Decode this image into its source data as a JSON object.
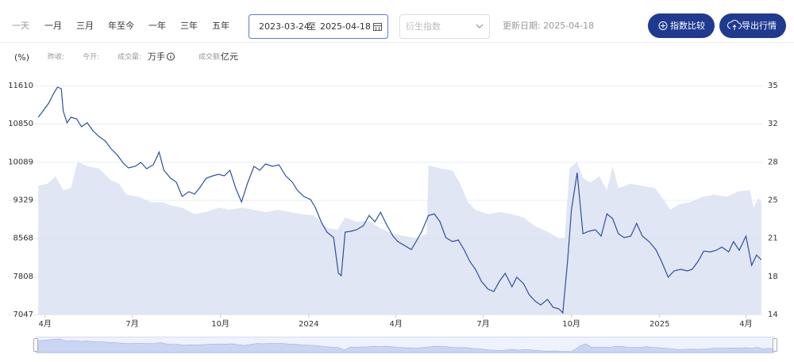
{
  "toolbar": {
    "periods": [
      "一天",
      "一月",
      "三月",
      "年至今",
      "一年",
      "三年",
      "五年"
    ],
    "date_start": "2023-03-24",
    "date_sep": "至",
    "date_end": "2025-04-18",
    "derived_placeholder": "衍生指数",
    "update_label": "更新日期: 2025-04-18",
    "buttons": [
      "指数比较",
      "导出行情"
    ]
  },
  "info_bar": {
    "unit": "(%)",
    "prev_close": "昨收:",
    "open": "今开:",
    "volume": "成交量:",
    "volume_unit": "万手",
    "turnover": "成交额:",
    "turnover_unit": "亿元"
  },
  "chart_data": {
    "type": "line",
    "grid": true,
    "xlim": [
      0,
      756
    ],
    "xticks": [
      {
        "value": 8,
        "label": "4月"
      },
      {
        "value": 99,
        "label": "7月"
      },
      {
        "value": 191,
        "label": "10月"
      },
      {
        "value": 283,
        "label": "2024"
      },
      {
        "value": 374,
        "label": "4月"
      },
      {
        "value": 465,
        "label": "7月"
      },
      {
        "value": 557,
        "label": "10月"
      },
      {
        "value": 649,
        "label": "2025"
      },
      {
        "value": 739,
        "label": "4月"
      }
    ],
    "ylim": [
      7047,
      11610
    ],
    "yticks": [
      7047,
      {
        "value": 7807.5,
        "label": "7808"
      },
      8568,
      {
        "value": 9328.5,
        "label": "9329"
      },
      10089,
      {
        "value": 10849.5,
        "label": "10850"
      },
      11610
    ],
    "y2lim": [
      14,
      35
    ],
    "y2ticks": [
      14,
      {
        "value": 17.5,
        "label": "18"
      },
      21,
      {
        "value": 24.5,
        "label": "25"
      },
      28,
      {
        "value": 31.5,
        "label": "32"
      },
      35
    ],
    "series": [
      {
        "color": "#d6ddef",
        "axis": "y2",
        "area": true,
        "x": [
          1,
          11,
          19,
          27,
          35,
          42,
          52,
          64,
          77,
          85,
          93,
          106,
          118,
          131,
          139,
          151,
          164,
          176,
          189,
          201,
          213,
          226,
          238,
          251,
          263,
          275,
          288,
          296,
          304,
          313,
          321,
          333,
          346,
          358,
          371,
          383,
          395,
          406,
          408,
          420,
          433,
          441,
          449,
          457,
          470,
          482,
          495,
          507,
          519,
          532,
          544,
          550,
          555,
          563,
          569,
          577,
          586,
          594,
          600,
          606,
          619,
          631,
          644,
          652,
          660,
          669,
          681,
          694,
          706,
          719,
          731,
          743,
          747,
          752,
          755
        ],
        "values": [
          25.8,
          26.0,
          26.7,
          25.4,
          25.6,
          28.0,
          27.6,
          27.4,
          26.3,
          26.0,
          25.0,
          24.8,
          24.3,
          24.3,
          24.0,
          23.8,
          23.2,
          23.4,
          23.8,
          23.6,
          23.8,
          23.6,
          23.4,
          23.6,
          23.4,
          23.2,
          23.1,
          22.4,
          21.9,
          21.8,
          22.9,
          22.5,
          22.6,
          21.9,
          21.4,
          21.2,
          21.0,
          21.4,
          27.7,
          27.4,
          27.2,
          26.0,
          24.3,
          23.6,
          23.2,
          23.4,
          23.2,
          22.9,
          22.1,
          21.6,
          21.0,
          21.0,
          27.4,
          28.0,
          26.5,
          26.1,
          26.7,
          25.4,
          27.6,
          25.6,
          26.0,
          25.8,
          25.6,
          24.7,
          23.6,
          24.1,
          24.3,
          24.8,
          25.0,
          24.8,
          25.3,
          25.4,
          23.8,
          24.7,
          24.3
        ]
      },
      {
        "color": "#2d4f9e",
        "axis": "y",
        "x": [
          1,
          6,
          12,
          17,
          21,
          25,
          27,
          31,
          35,
          41,
          46,
          52,
          58,
          64,
          71,
          77,
          83,
          89,
          95,
          102,
          108,
          114,
          121,
          127,
          132,
          139,
          145,
          151,
          158,
          164,
          170,
          176,
          183,
          189,
          195,
          201,
          207,
          213,
          219,
          226,
          232,
          238,
          245,
          252,
          259,
          266,
          271,
          278,
          285,
          290,
          296,
          302,
          309,
          314,
          317,
          321,
          327,
          333,
          340,
          346,
          352,
          358,
          364,
          371,
          376,
          383,
          390,
          395,
          401,
          408,
          414,
          420,
          426,
          433,
          439,
          445,
          451,
          457,
          463,
          470,
          476,
          482,
          488,
          495,
          500,
          507,
          513,
          519,
          525,
          532,
          538,
          544,
          548,
          553,
          557,
          563,
          569,
          575,
          582,
          588,
          594,
          600,
          606,
          612,
          619,
          625,
          631,
          638,
          645,
          651,
          658,
          664,
          671,
          678,
          683,
          689,
          695,
          702,
          708,
          714,
          721,
          726,
          732,
          739,
          745,
          750,
          755
        ],
        "values": [
          10979,
          11105,
          11263,
          11452,
          11579,
          11547,
          11105,
          10868,
          10979,
          10947,
          10789,
          10868,
          10710,
          10600,
          10505,
          10347,
          10237,
          10079,
          9968,
          10000,
          10079,
          9952,
          10031,
          10284,
          9921,
          9763,
          9684,
          9400,
          9494,
          9447,
          9589,
          9763,
          9810,
          9842,
          9810,
          9921,
          9558,
          9289,
          9652,
          10000,
          9921,
          10047,
          10000,
          10031,
          9810,
          9684,
          9526,
          9400,
          9337,
          9179,
          8894,
          8689,
          8579,
          7868,
          7821,
          8689,
          8705,
          8737,
          8815,
          9021,
          8894,
          9084,
          8847,
          8610,
          8500,
          8421,
          8342,
          8500,
          8705,
          9021,
          9052,
          8894,
          8579,
          8500,
          8531,
          8342,
          8105,
          7947,
          7710,
          7552,
          7505,
          7710,
          7868,
          7600,
          7789,
          7663,
          7442,
          7315,
          7236,
          7347,
          7189,
          7158,
          7079,
          8105,
          9131,
          9873,
          8658,
          8705,
          8737,
          8610,
          9052,
          8958,
          8658,
          8579,
          8610,
          8863,
          8610,
          8500,
          8342,
          8105,
          7789,
          7915,
          7947,
          7915,
          7947,
          8105,
          8310,
          8294,
          8326,
          8389,
          8294,
          8500,
          8326,
          8610,
          8026,
          8231,
          8137
        ]
      }
    ]
  }
}
